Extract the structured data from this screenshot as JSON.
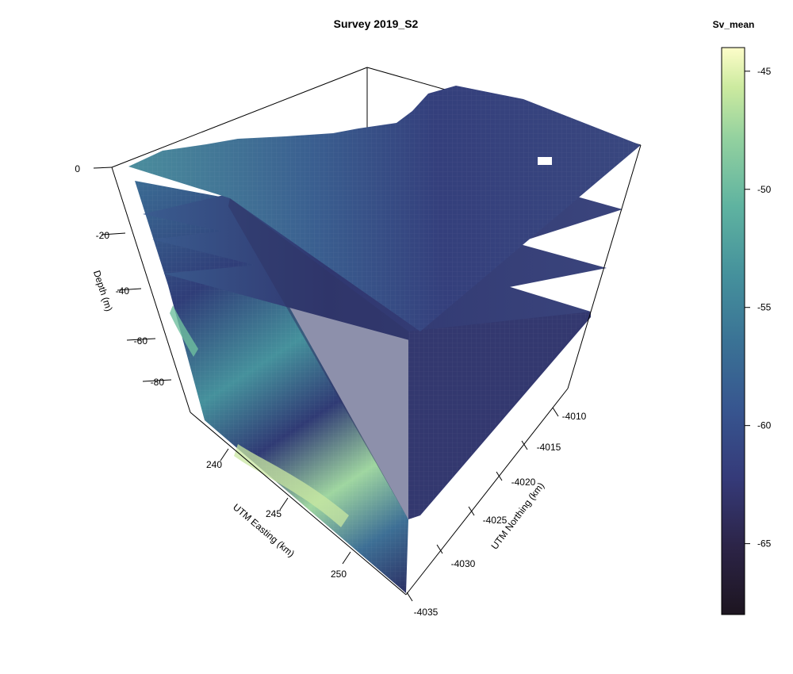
{
  "chart_data": {
    "type": "3d-volume-slices",
    "title": "Survey 2019_S2",
    "colorbar": {
      "title": "Sv_mean",
      "range": [
        -68,
        -44
      ],
      "ticks": [
        -45,
        -50,
        -55,
        -60,
        -65
      ],
      "tick_labels": [
        "-45",
        "-50",
        "-55",
        "-60",
        "-65"
      ],
      "colormap": [
        "#1d1520",
        "#2c2447",
        "#353a79",
        "#37558f",
        "#3a7295",
        "#45919c",
        "#5fb3a0",
        "#93d19f",
        "#ccea9f",
        "#fdfdc9"
      ]
    },
    "axes": {
      "z": {
        "label": "Depth (m)",
        "ticks": [
          0,
          -20,
          -40,
          -60,
          -80
        ],
        "tick_labels": [
          "0",
          "-20",
          "-40",
          "-60",
          "-80"
        ]
      },
      "x": {
        "label": "UTM Easting (km)",
        "ticks": [
          240,
          245,
          250
        ],
        "tick_labels": [
          "240",
          "245",
          "250"
        ]
      },
      "y": {
        "label": "UTM Northing (km)",
        "ticks": [
          -4010,
          -4015,
          -4020,
          -4025,
          -4030,
          -4035
        ],
        "tick_labels": [
          "-4010",
          "-4015",
          "-4020",
          "-4025",
          "-4030",
          "-4035"
        ]
      }
    },
    "slices": [
      {
        "kind": "horizontal",
        "depth": 0
      },
      {
        "kind": "horizontal",
        "depth": -20
      },
      {
        "kind": "horizontal",
        "depth": -40
      },
      {
        "kind": "horizontal",
        "depth": -60
      },
      {
        "kind": "vertical",
        "plane": "easting-face"
      },
      {
        "kind": "vertical",
        "plane": "northing-face"
      }
    ]
  }
}
